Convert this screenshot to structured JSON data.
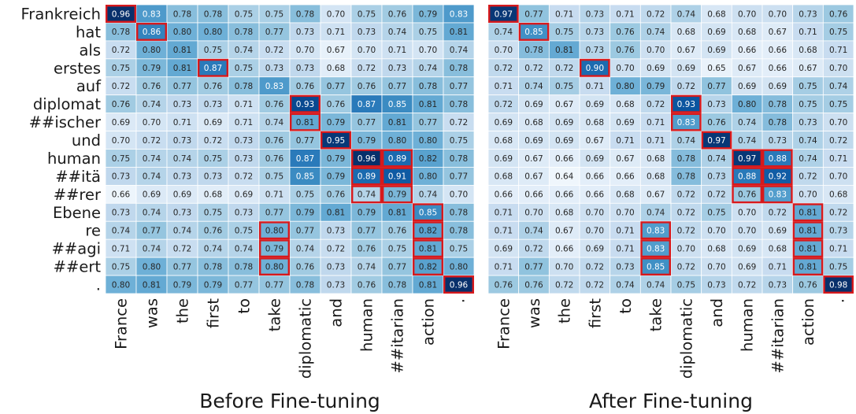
{
  "chart_data": [
    {
      "type": "heatmap",
      "title": "Before Fine-tuning",
      "y_categories": [
        "Frankreich",
        "hat",
        "als",
        "erstes",
        "auf",
        "diplomat",
        "##ischer",
        "und",
        "human",
        "##itä",
        "##rer",
        "Ebene",
        "re",
        "##agi",
        "##ert",
        "."
      ],
      "x_categories": [
        "France",
        "was",
        "the",
        "first",
        "to",
        "take",
        "diplomatic",
        "and",
        "human",
        "##itarian",
        "action",
        "."
      ],
      "values": [
        [
          0.96,
          0.83,
          0.78,
          0.78,
          0.75,
          0.75,
          0.78,
          0.7,
          0.75,
          0.76,
          0.79,
          0.83
        ],
        [
          0.78,
          0.86,
          0.8,
          0.8,
          0.78,
          0.77,
          0.73,
          0.71,
          0.73,
          0.74,
          0.75,
          0.81
        ],
        [
          0.72,
          0.8,
          0.81,
          0.75,
          0.74,
          0.72,
          0.7,
          0.67,
          0.7,
          0.71,
          0.7,
          0.74
        ],
        [
          0.75,
          0.79,
          0.81,
          0.87,
          0.75,
          0.73,
          0.73,
          0.68,
          0.72,
          0.73,
          0.74,
          0.78
        ],
        [
          0.72,
          0.76,
          0.77,
          0.76,
          0.78,
          0.83,
          0.76,
          0.77,
          0.76,
          0.77,
          0.78,
          0.77
        ],
        [
          0.76,
          0.74,
          0.73,
          0.73,
          0.71,
          0.76,
          0.93,
          0.76,
          0.87,
          0.85,
          0.81,
          0.78
        ],
        [
          0.69,
          0.7,
          0.71,
          0.69,
          0.71,
          0.74,
          0.81,
          0.79,
          0.77,
          0.81,
          0.77,
          0.72
        ],
        [
          0.7,
          0.72,
          0.73,
          0.72,
          0.73,
          0.76,
          0.77,
          0.95,
          0.79,
          0.8,
          0.8,
          0.75
        ],
        [
          0.75,
          0.74,
          0.74,
          0.75,
          0.73,
          0.76,
          0.87,
          0.79,
          0.96,
          0.89,
          0.82,
          0.78
        ],
        [
          0.73,
          0.74,
          0.73,
          0.73,
          0.72,
          0.75,
          0.85,
          0.79,
          0.89,
          0.91,
          0.8,
          0.77
        ],
        [
          0.66,
          0.69,
          0.69,
          0.68,
          0.69,
          0.71,
          0.75,
          0.76,
          0.74,
          0.79,
          0.74,
          0.7
        ],
        [
          0.73,
          0.74,
          0.73,
          0.75,
          0.73,
          0.77,
          0.79,
          0.81,
          0.79,
          0.81,
          0.85,
          0.78
        ],
        [
          0.74,
          0.77,
          0.74,
          0.76,
          0.75,
          0.8,
          0.77,
          0.73,
          0.77,
          0.76,
          0.82,
          0.78
        ],
        [
          0.71,
          0.74,
          0.72,
          0.74,
          0.74,
          0.79,
          0.74,
          0.72,
          0.76,
          0.75,
          0.81,
          0.75
        ],
        [
          0.75,
          0.8,
          0.77,
          0.78,
          0.78,
          0.8,
          0.76,
          0.73,
          0.74,
          0.77,
          0.82,
          0.8
        ],
        [
          0.8,
          0.81,
          0.79,
          0.79,
          0.77,
          0.77,
          0.78,
          0.73,
          0.76,
          0.78,
          0.81,
          0.96
        ]
      ],
      "highlighted_cells": [
        [
          0,
          0
        ],
        [
          1,
          1
        ],
        [
          3,
          3
        ],
        [
          5,
          6
        ],
        [
          6,
          6
        ],
        [
          7,
          7
        ],
        [
          8,
          8
        ],
        [
          8,
          9
        ],
        [
          9,
          8
        ],
        [
          9,
          9
        ],
        [
          10,
          8
        ],
        [
          10,
          9
        ],
        [
          11,
          10
        ],
        [
          12,
          5
        ],
        [
          13,
          5
        ],
        [
          14,
          5
        ],
        [
          12,
          10
        ],
        [
          13,
          10
        ],
        [
          14,
          10
        ],
        [
          15,
          11
        ]
      ],
      "colormap": "Blues",
      "highlight_color": "#d7191c"
    },
    {
      "type": "heatmap",
      "title": "After Fine-tuning",
      "y_categories": [
        "Frankreich",
        "hat",
        "als",
        "erstes",
        "auf",
        "diplomat",
        "##ischer",
        "und",
        "human",
        "##itä",
        "##rer",
        "Ebene",
        "re",
        "##agi",
        "##ert",
        "."
      ],
      "x_categories": [
        "France",
        "was",
        "the",
        "first",
        "to",
        "take",
        "diplomatic",
        "and",
        "human",
        "##itarian",
        "action",
        "."
      ],
      "values": [
        [
          0.97,
          0.77,
          0.71,
          0.73,
          0.71,
          0.72,
          0.74,
          0.68,
          0.7,
          0.7,
          0.73,
          0.76
        ],
        [
          0.74,
          0.85,
          0.75,
          0.73,
          0.76,
          0.74,
          0.68,
          0.69,
          0.68,
          0.67,
          0.71,
          0.75
        ],
        [
          0.7,
          0.78,
          0.81,
          0.73,
          0.76,
          0.7,
          0.67,
          0.69,
          0.66,
          0.66,
          0.68,
          0.71
        ],
        [
          0.72,
          0.72,
          0.72,
          0.9,
          0.7,
          0.69,
          0.69,
          0.65,
          0.67,
          0.66,
          0.67,
          0.7
        ],
        [
          0.71,
          0.74,
          0.75,
          0.71,
          0.8,
          0.79,
          0.72,
          0.77,
          0.69,
          0.69,
          0.75,
          0.74
        ],
        [
          0.72,
          0.69,
          0.67,
          0.69,
          0.68,
          0.72,
          0.93,
          0.73,
          0.8,
          0.78,
          0.75,
          0.75
        ],
        [
          0.69,
          0.68,
          0.69,
          0.68,
          0.69,
          0.71,
          0.83,
          0.76,
          0.74,
          0.78,
          0.73,
          0.7
        ],
        [
          0.68,
          0.69,
          0.69,
          0.67,
          0.71,
          0.71,
          0.74,
          0.97,
          0.74,
          0.73,
          0.74,
          0.72
        ],
        [
          0.69,
          0.67,
          0.66,
          0.69,
          0.67,
          0.68,
          0.78,
          0.74,
          0.97,
          0.88,
          0.74,
          0.71
        ],
        [
          0.68,
          0.67,
          0.64,
          0.66,
          0.66,
          0.68,
          0.78,
          0.73,
          0.88,
          0.92,
          0.72,
          0.7
        ],
        [
          0.66,
          0.66,
          0.66,
          0.66,
          0.68,
          0.67,
          0.72,
          0.72,
          0.76,
          0.83,
          0.7,
          0.68
        ],
        [
          0.71,
          0.7,
          0.68,
          0.7,
          0.7,
          0.74,
          0.72,
          0.75,
          0.7,
          0.72,
          0.81,
          0.72
        ],
        [
          0.71,
          0.74,
          0.67,
          0.7,
          0.71,
          0.83,
          0.72,
          0.7,
          0.7,
          0.69,
          0.81,
          0.73
        ],
        [
          0.69,
          0.72,
          0.66,
          0.69,
          0.71,
          0.83,
          0.7,
          0.68,
          0.69,
          0.68,
          0.81,
          0.71
        ],
        [
          0.71,
          0.77,
          0.7,
          0.72,
          0.73,
          0.85,
          0.72,
          0.7,
          0.69,
          0.71,
          0.81,
          0.75
        ],
        [
          0.76,
          0.76,
          0.72,
          0.72,
          0.74,
          0.74,
          0.75,
          0.73,
          0.72,
          0.73,
          0.76,
          0.98
        ]
      ],
      "highlighted_cells": [
        [
          0,
          0
        ],
        [
          1,
          1
        ],
        [
          3,
          3
        ],
        [
          5,
          6
        ],
        [
          6,
          6
        ],
        [
          7,
          7
        ],
        [
          8,
          8
        ],
        [
          8,
          9
        ],
        [
          9,
          8
        ],
        [
          9,
          9
        ],
        [
          10,
          8
        ],
        [
          10,
          9
        ],
        [
          11,
          10
        ],
        [
          12,
          5
        ],
        [
          13,
          5
        ],
        [
          14,
          5
        ],
        [
          12,
          10
        ],
        [
          13,
          10
        ],
        [
          14,
          10
        ],
        [
          15,
          11
        ]
      ],
      "colormap": "Blues",
      "highlight_color": "#d7191c"
    }
  ]
}
